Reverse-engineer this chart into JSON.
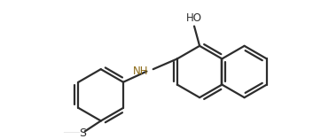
{
  "bg_color": "#ffffff",
  "line_color": "#2d2d2d",
  "bond_lw": 1.6,
  "nh_color": "#8B6914",
  "figsize": [
    3.53,
    1.57
  ],
  "dpi": 100,
  "xlim": [
    0.0,
    7.2
  ],
  "ylim": [
    -0.5,
    3.2
  ]
}
